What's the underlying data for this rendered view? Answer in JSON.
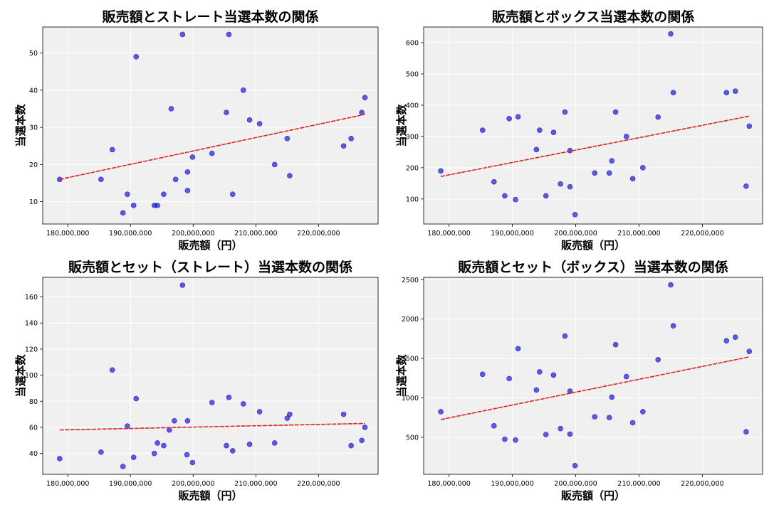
{
  "chart_data": [
    {
      "type": "scatter",
      "title": "販売額とストレート当選本数の関係",
      "xlabel": "販売額（円）",
      "ylabel": "当選本数",
      "x_ticks": [
        "180,000,000",
        "190,000,000",
        "200,000,000",
        "210,000,000",
        "220,000,000"
      ],
      "x_tick_values": [
        180000000,
        190000000,
        200000000,
        210000000,
        220000000
      ],
      "y_ticks": [
        10,
        20,
        30,
        40,
        50
      ],
      "xlim": [
        176000000,
        229500000
      ],
      "ylim": [
        4,
        57
      ],
      "grid": true,
      "point_color": "#0000cc",
      "trend_color": "#e02020",
      "points": [
        [
          178700000,
          16
        ],
        [
          185300000,
          16
        ],
        [
          187100000,
          24
        ],
        [
          188800000,
          7
        ],
        [
          189500000,
          12
        ],
        [
          190500000,
          9
        ],
        [
          190900000,
          49
        ],
        [
          193800000,
          9
        ],
        [
          194300000,
          9
        ],
        [
          195300000,
          12
        ],
        [
          196500000,
          35
        ],
        [
          197200000,
          16
        ],
        [
          198300000,
          55
        ],
        [
          199100000,
          13
        ],
        [
          199100000,
          18
        ],
        [
          199900000,
          22
        ],
        [
          203000000,
          23
        ],
        [
          205300000,
          34
        ],
        [
          205700000,
          55
        ],
        [
          206300000,
          12
        ],
        [
          208000000,
          40
        ],
        [
          209000000,
          32
        ],
        [
          210600000,
          31
        ],
        [
          213000000,
          20
        ],
        [
          215000000,
          27
        ],
        [
          215400000,
          17
        ],
        [
          224000000,
          25
        ],
        [
          225200000,
          27
        ],
        [
          226900000,
          34
        ],
        [
          227400000,
          38
        ]
      ],
      "trend": [
        [
          178700000,
          16
        ],
        [
          227400000,
          33.5
        ]
      ]
    },
    {
      "type": "scatter",
      "title": "販売額とボックス当選本数の関係",
      "xlabel": "販売額（円）",
      "ylabel": "当選本数",
      "x_ticks": [
        "180,000,000",
        "190,000,000",
        "200,000,000",
        "210,000,000",
        "220,000,000"
      ],
      "x_tick_values": [
        180000000,
        190000000,
        200000000,
        210000000,
        220000000
      ],
      "y_ticks": [
        100,
        200,
        300,
        400,
        500,
        600
      ],
      "xlim": [
        176000000,
        229500000
      ],
      "ylim": [
        20,
        650
      ],
      "grid": true,
      "point_color": "#0000cc",
      "trend_color": "#e02020",
      "points": [
        [
          178700000,
          190
        ],
        [
          185300000,
          320
        ],
        [
          187100000,
          155
        ],
        [
          188800000,
          110
        ],
        [
          189500000,
          357
        ],
        [
          190500000,
          98
        ],
        [
          190900000,
          363
        ],
        [
          193800000,
          258
        ],
        [
          194300000,
          320
        ],
        [
          195300000,
          110
        ],
        [
          196500000,
          313
        ],
        [
          197600000,
          148
        ],
        [
          198300000,
          378
        ],
        [
          199100000,
          139
        ],
        [
          199100000,
          255
        ],
        [
          199900000,
          50
        ],
        [
          203000000,
          183
        ],
        [
          205300000,
          183
        ],
        [
          205700000,
          222
        ],
        [
          206300000,
          378
        ],
        [
          208000000,
          300
        ],
        [
          209000000,
          165
        ],
        [
          210600000,
          200
        ],
        [
          213000000,
          362
        ],
        [
          215000000,
          628
        ],
        [
          215400000,
          440
        ],
        [
          223800000,
          440
        ],
        [
          225200000,
          445
        ],
        [
          226900000,
          141
        ],
        [
          227400000,
          333
        ]
      ],
      "trend": [
        [
          178700000,
          172
        ],
        [
          227400000,
          365
        ]
      ]
    },
    {
      "type": "scatter",
      "title": "販売額とセット（ストレート）当選本数の関係",
      "xlabel": "販売額（円）",
      "ylabel": "当選本数",
      "x_ticks": [
        "180,000,000",
        "190,000,000",
        "200,000,000",
        "210,000,000",
        "220,000,000"
      ],
      "x_tick_values": [
        180000000,
        190000000,
        200000000,
        210000000,
        220000000
      ],
      "y_ticks": [
        40,
        60,
        80,
        100,
        120,
        140,
        160
      ],
      "xlim": [
        176000000,
        229500000
      ],
      "ylim": [
        24,
        175
      ],
      "grid": true,
      "point_color": "#0000cc",
      "trend_color": "#e02020",
      "points": [
        [
          178700000,
          36
        ],
        [
          185300000,
          41
        ],
        [
          187100000,
          104
        ],
        [
          188800000,
          30
        ],
        [
          189500000,
          61
        ],
        [
          190500000,
          37
        ],
        [
          190900000,
          82
        ],
        [
          193800000,
          40
        ],
        [
          194300000,
          48
        ],
        [
          195300000,
          46
        ],
        [
          196200000,
          58
        ],
        [
          197000000,
          65
        ],
        [
          198300000,
          169
        ],
        [
          199000000,
          39
        ],
        [
          199100000,
          65
        ],
        [
          199900000,
          33
        ],
        [
          203000000,
          79
        ],
        [
          205300000,
          46
        ],
        [
          205700000,
          83
        ],
        [
          206300000,
          42
        ],
        [
          208000000,
          78
        ],
        [
          209000000,
          47
        ],
        [
          210600000,
          72
        ],
        [
          213000000,
          48
        ],
        [
          215000000,
          67
        ],
        [
          215400000,
          70
        ],
        [
          224000000,
          70
        ],
        [
          225200000,
          46
        ],
        [
          226900000,
          50
        ],
        [
          227400000,
          60
        ]
      ],
      "trend": [
        [
          178700000,
          58
        ],
        [
          227400000,
          63
        ]
      ]
    },
    {
      "type": "scatter",
      "title": "販売額とセット（ボックス）当選本数の関係",
      "xlabel": "販売額（円）",
      "ylabel": "当選本数",
      "x_ticks": [
        "180,000,000",
        "190,000,000",
        "200,000,000",
        "210,000,000",
        "220,000,000"
      ],
      "x_tick_values": [
        180000000,
        190000000,
        200000000,
        210000000,
        220000000
      ],
      "y_ticks": [
        500,
        1000,
        1500,
        2000,
        2500
      ],
      "xlim": [
        176000000,
        229500000
      ],
      "ylim": [
        30,
        2530
      ],
      "grid": true,
      "point_color": "#0000cc",
      "trend_color": "#e02020",
      "points": [
        [
          178700000,
          825
        ],
        [
          185300000,
          1300
        ],
        [
          187100000,
          645
        ],
        [
          188800000,
          475
        ],
        [
          189500000,
          1245
        ],
        [
          190500000,
          465
        ],
        [
          190900000,
          1625
        ],
        [
          193800000,
          1100
        ],
        [
          194300000,
          1330
        ],
        [
          195300000,
          535
        ],
        [
          196500000,
          1290
        ],
        [
          197600000,
          610
        ],
        [
          198300000,
          1785
        ],
        [
          199100000,
          540
        ],
        [
          199100000,
          1085
        ],
        [
          199900000,
          140
        ],
        [
          203000000,
          760
        ],
        [
          205300000,
          750
        ],
        [
          205700000,
          1010
        ],
        [
          206300000,
          1675
        ],
        [
          208000000,
          1270
        ],
        [
          209000000,
          685
        ],
        [
          210600000,
          825
        ],
        [
          213000000,
          1485
        ],
        [
          215000000,
          2435
        ],
        [
          215400000,
          1915
        ],
        [
          223800000,
          1725
        ],
        [
          225200000,
          1770
        ],
        [
          226900000,
          570
        ],
        [
          227400000,
          1590
        ]
      ],
      "trend": [
        [
          178700000,
          725
        ],
        [
          227400000,
          1520
        ]
      ]
    }
  ]
}
